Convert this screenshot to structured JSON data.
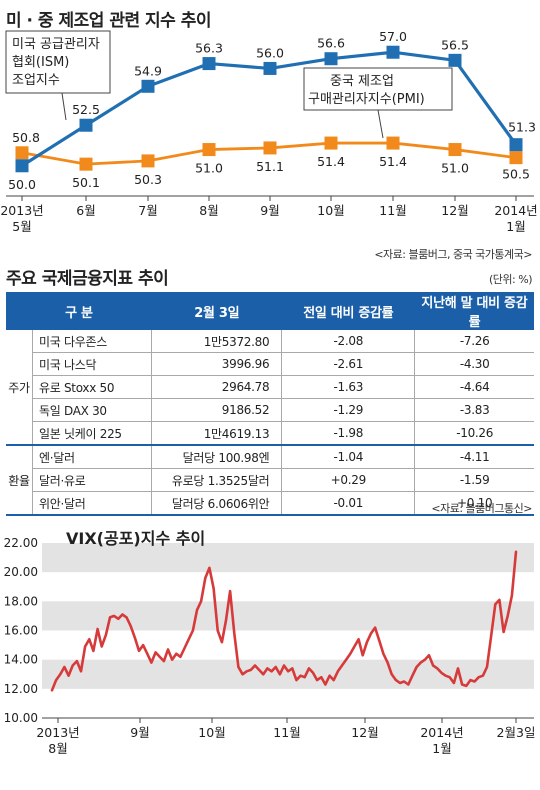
{
  "chart1": {
    "title": "미 · 중 제조업 관련 지수 추이",
    "source": "<자료: 블룸버그, 중국 국가통계국>",
    "chart_data": {
      "type": "line",
      "categories": [
        "2013년 5월",
        "6월",
        "7월",
        "8월",
        "9월",
        "10월",
        "11월",
        "12월",
        "2014년 1월"
      ],
      "series": [
        {
          "name": "미국 공급관리자 협회(ISM) 제조업지수",
          "color": "#1f6fb2",
          "values": [
            50.0,
            52.5,
            54.9,
            56.3,
            56.0,
            56.6,
            57.0,
            56.5,
            51.3
          ]
        },
        {
          "name": "중국 제조업 구매관리자지수(PMI)",
          "color": "#f28a1b",
          "values": [
            50.8,
            50.1,
            50.3,
            51.0,
            51.1,
            51.4,
            51.4,
            51.0,
            50.5
          ]
        }
      ],
      "ylim": [
        49,
        58
      ]
    }
  },
  "table": {
    "title": "주요 국제금융지표 추이",
    "unit": "(단위: %)",
    "headers": [
      "구 분",
      "2월 3일",
      "전일 대비 증감률",
      "지난해 말 대비 증감률"
    ],
    "groups": [
      {
        "label": "주가",
        "rows": [
          [
            "미국 다우존스",
            "1만5372.80",
            "-2.08",
            "-7.26"
          ],
          [
            "미국 나스닥",
            "3996.96",
            "-2.61",
            "-4.30"
          ],
          [
            "유로 Stoxx 50",
            "2964.78",
            "-1.63",
            "-4.64"
          ],
          [
            "독일 DAX 30",
            "9186.52",
            "-1.29",
            "-3.83"
          ],
          [
            "일본 닛케이 225",
            "1만4619.13",
            "-1.98",
            "-10.26"
          ]
        ]
      },
      {
        "label": "환율",
        "rows": [
          [
            "엔·달러",
            "달러당 100.98엔",
            "-1.04",
            "-4.11"
          ],
          [
            "달러·유로",
            "유로당 1.3525달러",
            "+0.29",
            "-1.59"
          ],
          [
            "위안·달러",
            "달러당 6.0606위안",
            "-0.01",
            "+0.10"
          ]
        ]
      }
    ],
    "source": "<자료: 블룸버그통신>"
  },
  "chart2": {
    "title": "VIX(공포)지수 추이",
    "chart_data": {
      "type": "line",
      "color": "#d63a3a",
      "ylim": [
        10,
        22
      ],
      "yticks": [
        "10.00",
        "12.00",
        "14.00",
        "16.00",
        "18.00",
        "20.00",
        "22.00"
      ],
      "xticks": [
        "2013년 8월",
        "9월",
        "10월",
        "11월",
        "12월",
        "2014년 1월",
        "2월3일"
      ],
      "series": [
        {
          "values": [
            11.9,
            12.6,
            13.0,
            13.5,
            12.9,
            13.6,
            13.9,
            13.2,
            14.9,
            15.4,
            14.6,
            16.1,
            14.9,
            15.7,
            16.9,
            17.0,
            16.8,
            17.1,
            16.9,
            16.3,
            15.5,
            14.6,
            15.0,
            14.4,
            13.8,
            14.5,
            14.2,
            13.9,
            14.7,
            14.0,
            14.4,
            14.2,
            14.8,
            15.4,
            16.0,
            17.4,
            18.0,
            19.6,
            20.3,
            18.9,
            16.0,
            15.2,
            16.7,
            18.7,
            15.8,
            13.5,
            13.0,
            13.2,
            13.3,
            13.6,
            13.3,
            13.0,
            13.4,
            13.2,
            13.5,
            13.0,
            13.6,
            13.2,
            13.4,
            12.6,
            12.9,
            12.8,
            13.4,
            13.1,
            12.6,
            12.8,
            12.3,
            12.9,
            12.6,
            13.2,
            13.6,
            14.0,
            14.4,
            14.9,
            15.4,
            14.3,
            15.2,
            15.8,
            16.2,
            15.3,
            14.4,
            13.8,
            13.0,
            12.6,
            12.4,
            12.5,
            12.3,
            12.9,
            13.5,
            13.8,
            14.0,
            14.3,
            13.6,
            13.4,
            13.1,
            12.9,
            12.8,
            12.4,
            13.4,
            12.3,
            12.2,
            12.6,
            12.5,
            12.8,
            12.9,
            13.5,
            15.6,
            17.8,
            18.1,
            15.9,
            17.0,
            18.4,
            21.4
          ]
        }
      ]
    }
  }
}
